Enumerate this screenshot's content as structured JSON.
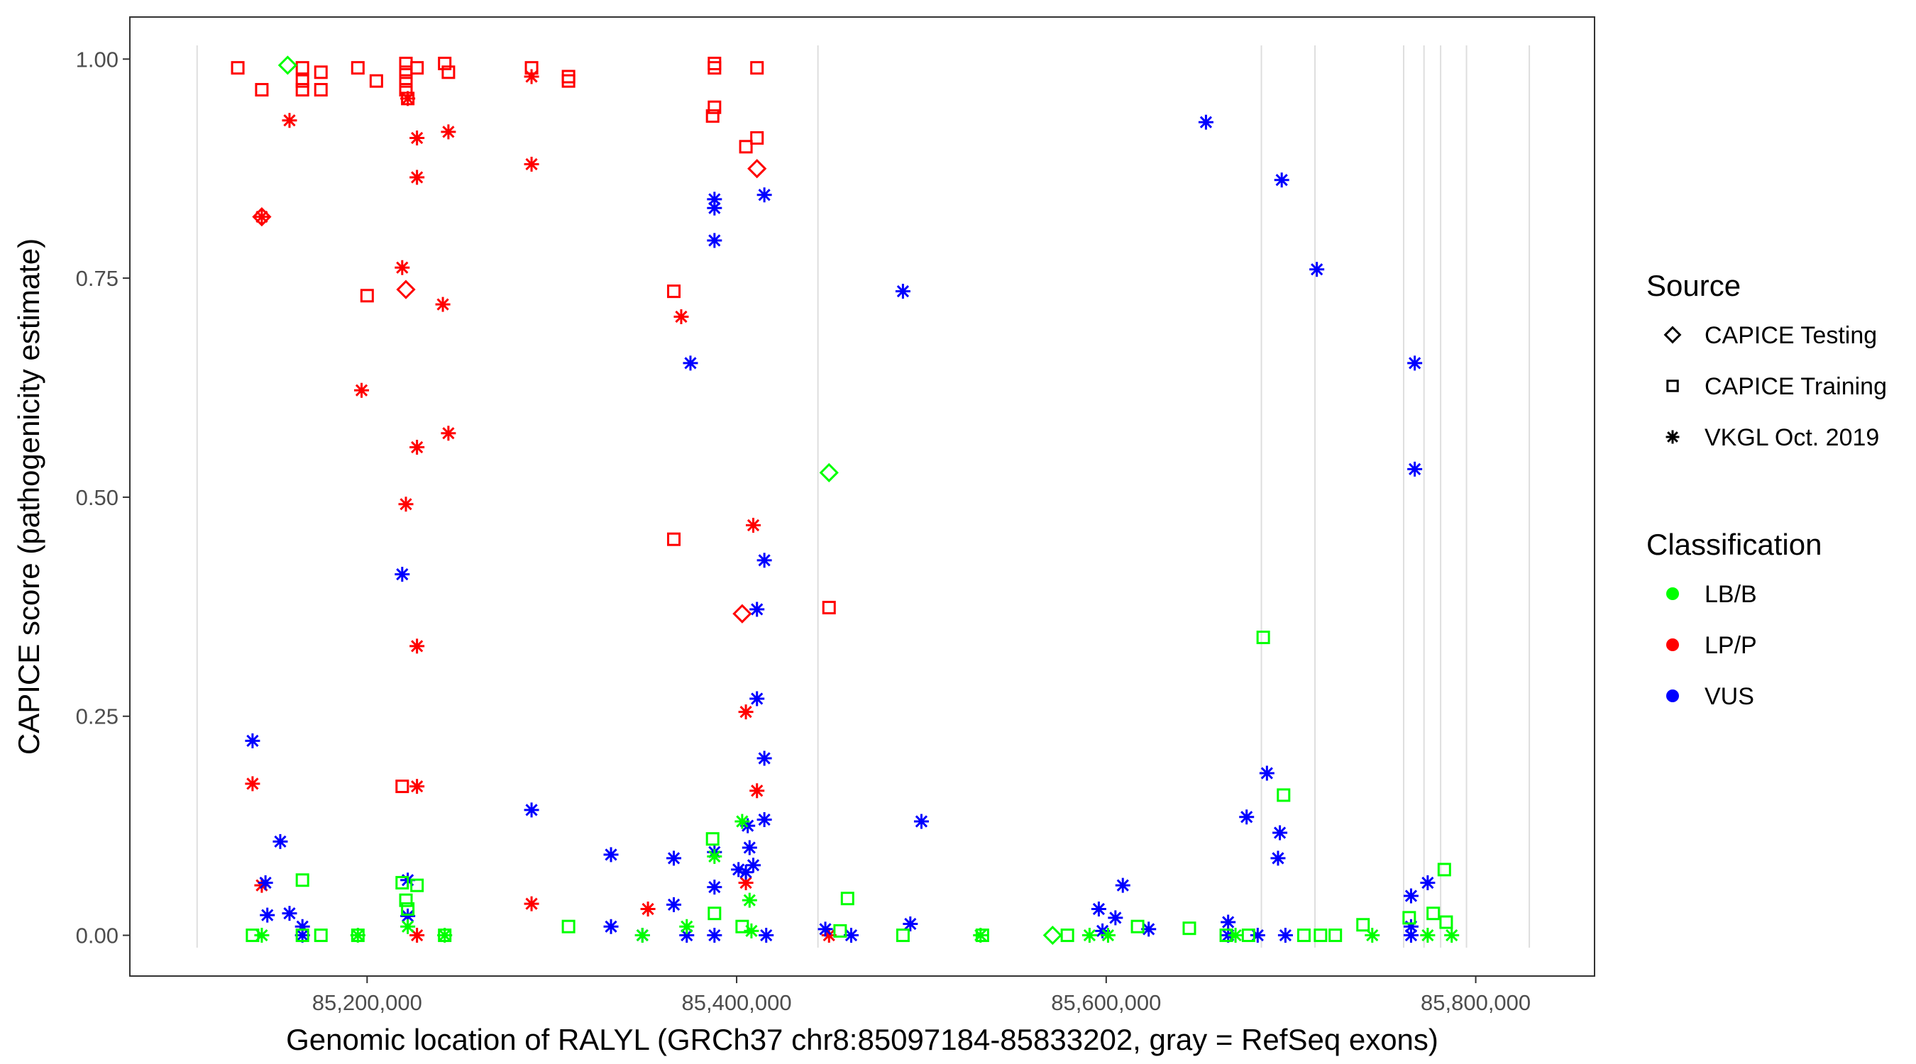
{
  "chart_data": {
    "type": "scatter",
    "xlabel": "Genomic location of RALYL (GRCh37 chr8:85097184-85833202, gray = RefSeq exons)",
    "ylabel": "CAPICE score (pathogenicity estimate)",
    "xlim": [
      85071600,
      85864300
    ],
    "ylim": [
      -0.0465,
      1.048
    ],
    "x_ticks": [
      85200000,
      85400000,
      85600000,
      85800000
    ],
    "x_tick_labels": [
      "85,200,000",
      "85,400,000",
      "85,600,000",
      "85,800,000"
    ],
    "y_ticks": [
      0,
      0.25,
      0.5,
      0.75,
      1.0
    ],
    "y_tick_labels": [
      "0.00",
      "0.25",
      "0.50",
      "0.75",
      "1.00"
    ],
    "grid": false,
    "exons": [
      85108000,
      85444000,
      85684000,
      85713000,
      85761000,
      85772000,
      85781000,
      85795000,
      85829000
    ],
    "legend": {
      "placement": "right",
      "source": {
        "title": "Source",
        "items": [
          {
            "key": "T",
            "label": "CAPICE Testing",
            "shape": "diamond"
          },
          {
            "key": "R",
            "label": "CAPICE Training",
            "shape": "square"
          },
          {
            "key": "V",
            "label": "VKGL Oct. 2019",
            "shape": "asterisk"
          }
        ]
      },
      "classification": {
        "title": "Classification",
        "items": [
          {
            "key": "B",
            "label": "LB/B",
            "color": "#00ff00"
          },
          {
            "key": "P",
            "label": "LP/P",
            "color": "#ff0000"
          },
          {
            "key": "U",
            "label": "VUS",
            "color": "#0000ff"
          }
        ]
      }
    },
    "point_fields": [
      "position",
      "score",
      "source",
      "classification"
    ],
    "points": [
      [
        85130000,
        0.99,
        "R",
        "P"
      ],
      [
        85143000,
        0.965,
        "R",
        "P"
      ],
      [
        85165000,
        0.99,
        "R",
        "P"
      ],
      [
        85165000,
        0.975,
        "R",
        "P"
      ],
      [
        85165000,
        0.965,
        "R",
        "P"
      ],
      [
        85175000,
        0.985,
        "R",
        "P"
      ],
      [
        85175000,
        0.965,
        "R",
        "P"
      ],
      [
        85195000,
        0.99,
        "R",
        "P"
      ],
      [
        85205000,
        0.975,
        "R",
        "P"
      ],
      [
        85221000,
        0.995,
        "R",
        "P"
      ],
      [
        85221000,
        0.985,
        "R",
        "P"
      ],
      [
        85221000,
        0.975,
        "R",
        "P"
      ],
      [
        85221000,
        0.965,
        "R",
        "P"
      ],
      [
        85222000,
        0.955,
        "R",
        "P"
      ],
      [
        85227000,
        0.99,
        "R",
        "P"
      ],
      [
        85242000,
        0.995,
        "R",
        "P"
      ],
      [
        85244000,
        0.985,
        "R",
        "P"
      ],
      [
        85289000,
        0.99,
        "R",
        "P"
      ],
      [
        85309000,
        0.98,
        "R",
        "P"
      ],
      [
        85309000,
        0.975,
        "R",
        "P"
      ],
      [
        85388000,
        0.995,
        "R",
        "P"
      ],
      [
        85388000,
        0.99,
        "R",
        "P"
      ],
      [
        85388000,
        0.945,
        "R",
        "P"
      ],
      [
        85387000,
        0.935,
        "R",
        "P"
      ],
      [
        85411000,
        0.99,
        "R",
        "P"
      ],
      [
        85411000,
        0.91,
        "R",
        "P"
      ],
      [
        85405000,
        0.9,
        "R",
        "P"
      ],
      [
        85200000,
        0.73,
        "R",
        "P"
      ],
      [
        85219000,
        0.17,
        "R",
        "P"
      ],
      [
        85366000,
        0.735,
        "R",
        "P"
      ],
      [
        85366000,
        0.452,
        "R",
        "P"
      ],
      [
        85450000,
        0.374,
        "R",
        "P"
      ],
      [
        85411000,
        0.875,
        "T",
        "P"
      ],
      [
        85221000,
        0.737,
        "T",
        "P"
      ],
      [
        85403000,
        0.367,
        "T",
        "P"
      ],
      [
        85143000,
        0.82,
        "T",
        "P"
      ],
      [
        85143000,
        0.82,
        "V",
        "P"
      ],
      [
        85158000,
        0.93,
        "V",
        "P"
      ],
      [
        85222000,
        0.955,
        "V",
        "P"
      ],
      [
        85227000,
        0.91,
        "V",
        "P"
      ],
      [
        85227000,
        0.865,
        "V",
        "P"
      ],
      [
        85244000,
        0.917,
        "V",
        "P"
      ],
      [
        85289000,
        0.98,
        "V",
        "P"
      ],
      [
        85289000,
        0.88,
        "V",
        "P"
      ],
      [
        85219000,
        0.762,
        "V",
        "P"
      ],
      [
        85241000,
        0.72,
        "V",
        "P"
      ],
      [
        85370000,
        0.706,
        "V",
        "P"
      ],
      [
        85197000,
        0.622,
        "V",
        "P"
      ],
      [
        85244000,
        0.573,
        "V",
        "P"
      ],
      [
        85227000,
        0.557,
        "V",
        "P"
      ],
      [
        85221000,
        0.492,
        "V",
        "P"
      ],
      [
        85409000,
        0.468,
        "V",
        "P"
      ],
      [
        85227000,
        0.33,
        "V",
        "P"
      ],
      [
        85405000,
        0.255,
        "V",
        "P"
      ],
      [
        85411000,
        0.165,
        "V",
        "P"
      ],
      [
        85138000,
        0.173,
        "V",
        "P"
      ],
      [
        85227000,
        0.17,
        "V",
        "P"
      ],
      [
        85289000,
        0.036,
        "V",
        "P"
      ],
      [
        85143000,
        0.057,
        "V",
        "P"
      ],
      [
        85352000,
        0.03,
        "V",
        "P"
      ],
      [
        85405000,
        0.06,
        "V",
        "P"
      ],
      [
        85227000,
        0.0,
        "V",
        "P"
      ],
      [
        85450000,
        0.0,
        "V",
        "P"
      ],
      [
        85654000,
        0.928,
        "V",
        "U"
      ],
      [
        85695000,
        0.862,
        "V",
        "U"
      ],
      [
        85714000,
        0.76,
        "V",
        "U"
      ],
      [
        85388000,
        0.84,
        "V",
        "U"
      ],
      [
        85388000,
        0.83,
        "V",
        "U"
      ],
      [
        85415000,
        0.845,
        "V",
        "U"
      ],
      [
        85388000,
        0.793,
        "V",
        "U"
      ],
      [
        85490000,
        0.735,
        "V",
        "U"
      ],
      [
        85375000,
        0.653,
        "V",
        "U"
      ],
      [
        85767000,
        0.653,
        "V",
        "U"
      ],
      [
        85767000,
        0.532,
        "V",
        "U"
      ],
      [
        85219000,
        0.412,
        "V",
        "U"
      ],
      [
        85415000,
        0.428,
        "V",
        "U"
      ],
      [
        85411000,
        0.372,
        "V",
        "U"
      ],
      [
        85411000,
        0.27,
        "V",
        "U"
      ],
      [
        85138000,
        0.222,
        "V",
        "U"
      ],
      [
        85415000,
        0.202,
        "V",
        "U"
      ],
      [
        85687000,
        0.185,
        "V",
        "U"
      ],
      [
        85500000,
        0.13,
        "V",
        "U"
      ],
      [
        85415000,
        0.132,
        "V",
        "U"
      ],
      [
        85406000,
        0.125,
        "V",
        "U"
      ],
      [
        85289000,
        0.143,
        "V",
        "U"
      ],
      [
        85676000,
        0.135,
        "V",
        "U"
      ],
      [
        85153000,
        0.107,
        "V",
        "U"
      ],
      [
        85694000,
        0.117,
        "V",
        "U"
      ],
      [
        85407000,
        0.1,
        "V",
        "U"
      ],
      [
        85388000,
        0.095,
        "V",
        "U"
      ],
      [
        85332000,
        0.092,
        "V",
        "U"
      ],
      [
        85366000,
        0.088,
        "V",
        "U"
      ],
      [
        85693000,
        0.088,
        "V",
        "U"
      ],
      [
        85409000,
        0.08,
        "V",
        "U"
      ],
      [
        85401000,
        0.075,
        "V",
        "U"
      ],
      [
        85405000,
        0.072,
        "V",
        "U"
      ],
      [
        85222000,
        0.063,
        "V",
        "U"
      ],
      [
        85145000,
        0.06,
        "V",
        "U"
      ],
      [
        85774000,
        0.06,
        "V",
        "U"
      ],
      [
        85609000,
        0.057,
        "V",
        "U"
      ],
      [
        85388000,
        0.055,
        "V",
        "U"
      ],
      [
        85765000,
        0.045,
        "V",
        "U"
      ],
      [
        85596000,
        0.03,
        "V",
        "U"
      ],
      [
        85158000,
        0.025,
        "V",
        "U"
      ],
      [
        85366000,
        0.035,
        "V",
        "U"
      ],
      [
        85146000,
        0.023,
        "V",
        "U"
      ],
      [
        85222000,
        0.022,
        "V",
        "U"
      ],
      [
        85605000,
        0.02,
        "V",
        "U"
      ],
      [
        85494000,
        0.013,
        "V",
        "U"
      ],
      [
        85165000,
        0.01,
        "V",
        "U"
      ],
      [
        85332000,
        0.01,
        "V",
        "U"
      ],
      [
        85666000,
        0.015,
        "V",
        "U"
      ],
      [
        85448000,
        0.007,
        "V",
        "U"
      ],
      [
        85623000,
        0.007,
        "V",
        "U"
      ],
      [
        85462000,
        0.0,
        "V",
        "U"
      ],
      [
        85349000,
        0.0,
        "V",
        "U"
      ],
      [
        85373000,
        0.0,
        "V",
        "U"
      ],
      [
        85388000,
        0.0,
        "V",
        "U"
      ],
      [
        85416000,
        0.0,
        "V",
        "U"
      ],
      [
        85666000,
        0.0,
        "V",
        "U"
      ],
      [
        85682000,
        0.0,
        "V",
        "U"
      ],
      [
        85697000,
        0.0,
        "V",
        "U"
      ],
      [
        85598000,
        0.005,
        "V",
        "U"
      ],
      [
        85765000,
        0.01,
        "V",
        "U"
      ],
      [
        85765000,
        0.0,
        "V",
        "U"
      ],
      [
        85165000,
        0.0,
        "V",
        "U"
      ],
      [
        85138000,
        0.0,
        "R",
        "B"
      ],
      [
        85165000,
        0.063,
        "R",
        "B"
      ],
      [
        85165000,
        0.0,
        "R",
        "B"
      ],
      [
        85175000,
        0.0,
        "R",
        "B"
      ],
      [
        85195000,
        0.0,
        "R",
        "B"
      ],
      [
        85219000,
        0.06,
        "R",
        "B"
      ],
      [
        85221000,
        0.04,
        "R",
        "B"
      ],
      [
        85222000,
        0.03,
        "R",
        "B"
      ],
      [
        85227000,
        0.057,
        "R",
        "B"
      ],
      [
        85242000,
        0.0,
        "R",
        "B"
      ],
      [
        85309000,
        0.01,
        "R",
        "B"
      ],
      [
        85387000,
        0.11,
        "R",
        "B"
      ],
      [
        85388000,
        0.025,
        "R",
        "B"
      ],
      [
        85460000,
        0.042,
        "R",
        "B"
      ],
      [
        85456000,
        0.005,
        "R",
        "B"
      ],
      [
        85490000,
        0.0,
        "R",
        "B"
      ],
      [
        85533000,
        0.0,
        "R",
        "B"
      ],
      [
        85579000,
        0.0,
        "R",
        "B"
      ],
      [
        85617000,
        0.01,
        "R",
        "B"
      ],
      [
        85645000,
        0.008,
        "R",
        "B"
      ],
      [
        85685000,
        0.34,
        "R",
        "B"
      ],
      [
        85696000,
        0.16,
        "R",
        "B"
      ],
      [
        85783000,
        0.075,
        "R",
        "B"
      ],
      [
        85739000,
        0.012,
        "R",
        "B"
      ],
      [
        85716000,
        0.0,
        "R",
        "B"
      ],
      [
        85724000,
        0.0,
        "R",
        "B"
      ],
      [
        85777000,
        0.025,
        "R",
        "B"
      ],
      [
        85784000,
        0.015,
        "R",
        "B"
      ],
      [
        85764000,
        0.02,
        "R",
        "B"
      ],
      [
        85707000,
        0.0,
        "R",
        "B"
      ],
      [
        85665000,
        0.0,
        "R",
        "B"
      ],
      [
        85677000,
        0.0,
        "R",
        "B"
      ],
      [
        85403000,
        0.01,
        "R",
        "B"
      ],
      [
        85143000,
        0.0,
        "V",
        "B"
      ],
      [
        85195000,
        0.0,
        "V",
        "B"
      ],
      [
        85222000,
        0.01,
        "V",
        "B"
      ],
      [
        85242000,
        0.0,
        "V",
        "B"
      ],
      [
        85388000,
        0.09,
        "V",
        "B"
      ],
      [
        85407000,
        0.04,
        "V",
        "B"
      ],
      [
        85403000,
        0.13,
        "V",
        "B"
      ],
      [
        85532000,
        0.0,
        "V",
        "B"
      ],
      [
        85591000,
        0.0,
        "V",
        "B"
      ],
      [
        85601000,
        0.0,
        "V",
        "B"
      ],
      [
        85670000,
        0.0,
        "V",
        "B"
      ],
      [
        85744000,
        0.0,
        "V",
        "B"
      ],
      [
        85774000,
        0.0,
        "V",
        "B"
      ],
      [
        85787000,
        0.0,
        "V",
        "B"
      ],
      [
        85349000,
        0.0,
        "V",
        "B"
      ],
      [
        85373000,
        0.01,
        "V",
        "B"
      ],
      [
        85408000,
        0.005,
        "V",
        "B"
      ],
      [
        85450000,
        0.528,
        "T",
        "B"
      ],
      [
        85571000,
        0.0,
        "T",
        "B"
      ],
      [
        85157000,
        0.993,
        "T",
        "B"
      ]
    ]
  }
}
